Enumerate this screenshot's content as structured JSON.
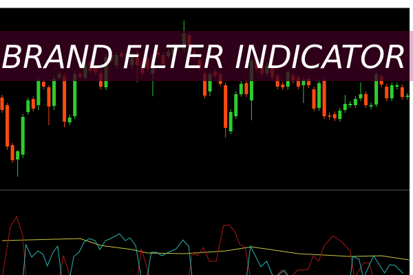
{
  "title": "BRAND FILTER INDICATOR",
  "colors": {
    "background": "#000000",
    "bull": "#2ecc2e",
    "bear": "#ff4a12",
    "indicator_red": "#b01818",
    "indicator_cyan": "#2ab8b8",
    "indicator_yellow": "#c8c840",
    "banner": "#3c0020"
  },
  "chart_data": [
    {
      "type": "candlestick",
      "grid": false,
      "ohlc": [
        [
          158,
          162,
          136,
          140
        ],
        [
          147,
          150,
          82,
          87
        ],
        [
          89,
          92,
          63,
          67
        ],
        [
          68,
          82,
          43,
          80
        ],
        [
          75,
          134,
          70,
          130
        ],
        [
          137,
          158,
          133,
          154
        ],
        [
          156,
          160,
          138,
          142
        ],
        [
          147,
          187,
          140,
          183
        ],
        [
          181,
          185,
          170,
          174
        ],
        [
          173,
          176,
          118,
          145
        ],
        [
          146,
          189,
          140,
          185
        ],
        [
          187,
          196,
          184,
          192
        ],
        [
          189,
          193,
          115,
          123
        ],
        [
          122,
          133,
          118,
          129
        ],
        [
          131,
          196,
          127,
          192
        ],
        [
          193,
          196,
          185,
          188
        ],
        [
          187,
          210,
          183,
          206
        ],
        [
          210,
          214,
          194,
          197
        ],
        [
          203,
          206,
          191,
          195
        ],
        [
          194,
          198,
          170,
          174
        ],
        [
          173,
          221,
          169,
          217
        ],
        [
          212,
          224,
          209,
          220
        ],
        [
          205,
          224,
          201,
          220
        ],
        [
          223,
          227,
          214,
          218
        ],
        [
          210,
          227,
          206,
          223
        ],
        [
          205,
          226,
          200,
          222
        ],
        [
          224,
          228,
          180,
          205
        ],
        [
          210,
          214,
          189,
          193
        ],
        [
          215,
          219,
          196,
          200
        ],
        [
          193,
          221,
          160,
          217
        ],
        [
          224,
          228,
          216,
          220
        ],
        [
          220,
          224,
          203,
          207
        ],
        [
          218,
          229,
          214,
          225
        ],
        [
          220,
          237,
          216,
          233
        ],
        [
          230,
          237,
          227,
          233
        ],
        [
          228,
          270,
          224,
          252
        ],
        [
          249,
          253,
          229,
          233
        ],
        [
          224,
          228,
          213,
          217
        ],
        [
          213,
          217,
          196,
          200
        ],
        [
          193,
          197,
          157,
          161
        ],
        [
          167,
          196,
          160,
          192
        ],
        [
          196,
          200,
          186,
          190
        ],
        [
          192,
          196,
          174,
          178
        ],
        [
          176,
          180,
          100,
          114
        ],
        [
          109,
          141,
          105,
          137
        ],
        [
          131,
          167,
          127,
          163
        ],
        [
          163,
          182,
          159,
          178
        ],
        [
          179,
          183,
          159,
          163
        ],
        [
          154,
          216,
          125,
          212
        ],
        [
          213,
          217,
          196,
          200
        ],
        [
          212,
          216,
          189,
          193
        ],
        [
          193,
          209,
          189,
          205
        ],
        [
          203,
          207,
          184,
          188
        ],
        [
          190,
          194,
          170,
          174
        ],
        [
          177,
          181,
          169,
          173
        ],
        [
          174,
          199,
          170,
          195
        ],
        [
          190,
          194,
          179,
          183
        ],
        [
          187,
          191,
          170,
          174
        ],
        [
          176,
          188,
          150,
          184
        ],
        [
          185,
          189,
          172,
          176
        ],
        [
          170,
          174,
          138,
          142
        ],
        [
          143,
          183,
          139,
          179
        ],
        [
          183,
          187,
          127,
          131
        ],
        [
          132,
          136,
          126,
          131
        ],
        [
          134,
          138,
          124,
          128
        ],
        [
          127,
          143,
          123,
          139
        ],
        [
          140,
          162,
          136,
          149
        ],
        [
          147,
          153,
          143,
          149
        ],
        [
          147,
          160,
          143,
          156
        ],
        [
          157,
          180,
          153,
          163
        ],
        [
          163,
          167,
          143,
          147
        ],
        [
          145,
          151,
          141,
          147
        ],
        [
          148,
          196,
          144,
          192
        ],
        [
          189,
          193,
          173,
          177
        ],
        [
          174,
          178,
          153,
          157
        ],
        [
          157,
          180,
          153,
          176
        ],
        [
          174,
          180,
          170,
          176
        ],
        [
          173,
          177,
          155,
          159
        ],
        [
          159,
          165,
          155,
          161
        ]
      ]
    },
    {
      "type": "line",
      "grid": false,
      "ylim": [
        0,
        122
      ],
      "series": [
        {
          "color": "#c8c840",
          "points": [
            [
              0,
              50
            ],
            [
              15,
              53
            ],
            [
              19,
              43
            ],
            [
              25,
              37
            ],
            [
              28,
              32
            ],
            [
              35,
              31
            ],
            [
              43,
              35
            ],
            [
              48,
              41
            ],
            [
              57,
              31
            ],
            [
              67,
              27
            ],
            [
              73,
              28
            ],
            [
              78.3,
              22
            ]
          ]
        },
        {
          "color": "#b01818",
          "points": [
            [
              0,
              -5
            ],
            [
              1.6,
              70
            ],
            [
              2.8,
              85
            ],
            [
              4,
              57
            ],
            [
              4.6,
              -5
            ],
            [
              11,
              -5
            ],
            [
              11.8,
              28
            ],
            [
              13.2,
              -5
            ],
            [
              26,
              -5
            ],
            [
              26.8,
              38
            ],
            [
              28.5,
              -5
            ],
            [
              35.9,
              -5
            ],
            [
              36.6,
              32
            ],
            [
              37.6,
              28
            ],
            [
              38.7,
              40
            ],
            [
              39.9,
              20
            ],
            [
              41.2,
              20
            ],
            [
              42.6,
              72
            ],
            [
              43.7,
              73
            ],
            [
              44.8,
              63
            ],
            [
              45.7,
              45
            ],
            [
              46.8,
              40
            ],
            [
              47.8,
              -5
            ],
            [
              52.3,
              -5
            ],
            [
              53.8,
              7
            ],
            [
              55.4,
              -5
            ],
            [
              56.8,
              7
            ],
            [
              58.9,
              8
            ],
            [
              59.9,
              28
            ],
            [
              60.9,
              20
            ],
            [
              62,
              43
            ],
            [
              63.7,
              57
            ],
            [
              65.4,
              48
            ],
            [
              67,
              35
            ],
            [
              67.8,
              -5
            ],
            [
              69.5,
              17
            ],
            [
              70.6,
              18
            ],
            [
              71.5,
              -5
            ],
            [
              78.3,
              -5
            ]
          ]
        },
        {
          "color": "#2ab8b8",
          "points": [
            [
              0,
              -5
            ],
            [
              4,
              -5
            ],
            [
              4.6,
              44
            ],
            [
              5.7,
              26
            ],
            [
              6.9,
              35
            ],
            [
              7.9,
              30
            ],
            [
              8.7,
              13
            ],
            [
              9.8,
              33
            ],
            [
              10.7,
              42
            ],
            [
              11.5,
              -5
            ],
            [
              13,
              -5
            ],
            [
              13.8,
              27
            ],
            [
              14.8,
              33
            ],
            [
              15.8,
              48
            ],
            [
              16.8,
              53
            ],
            [
              17.9,
              50
            ],
            [
              18.8,
              37
            ],
            [
              19.9,
              50
            ],
            [
              20.9,
              53
            ],
            [
              22.6,
              60
            ],
            [
              23.7,
              50
            ],
            [
              24.6,
              54
            ],
            [
              25.7,
              43
            ],
            [
              26.8,
              -5
            ],
            [
              27.9,
              -5
            ],
            [
              28.7,
              33
            ],
            [
              29.8,
              33
            ],
            [
              30.7,
              28
            ],
            [
              32,
              33
            ],
            [
              33.5,
              38
            ],
            [
              34.8,
              51
            ],
            [
              35.9,
              42
            ],
            [
              36.6,
              -5
            ],
            [
              47,
              -5
            ],
            [
              47.8,
              42
            ],
            [
              49.8,
              12
            ],
            [
              50.9,
              20
            ],
            [
              52.3,
              -5
            ],
            [
              54.3,
              7
            ],
            [
              55.4,
              -5
            ],
            [
              67,
              -5
            ],
            [
              67.5,
              27
            ],
            [
              68.7,
              23
            ],
            [
              69.5,
              -5
            ],
            [
              71.5,
              28
            ],
            [
              73.6,
              3
            ],
            [
              74.6,
              15
            ],
            [
              75.6,
              14
            ],
            [
              77.2,
              2
            ]
          ]
        }
      ]
    }
  ]
}
